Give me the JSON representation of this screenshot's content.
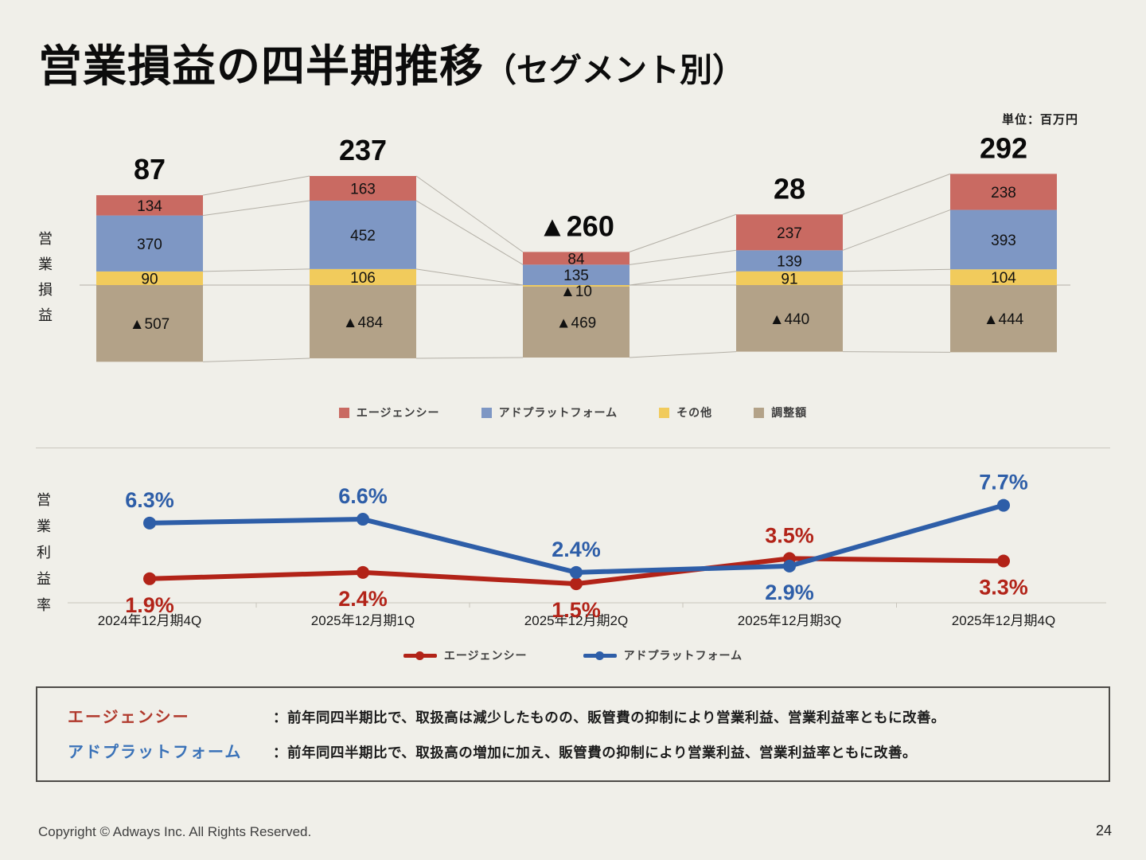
{
  "slide": {
    "title_main": "営業損益の四半期推移",
    "title_paren": "（セグメント別）",
    "unit_label": "単位：百万円",
    "footer": "Copyright © Adways Inc. All Rights Reserved.",
    "page_number": "24"
  },
  "commentary": {
    "rows": [
      {
        "label": "エージェンシー",
        "color": "#B0392C",
        "text": "：前年同四半期比で、取扱高は減少したものの、販管費の抑制により営業利益、営業利益率ともに改善。"
      },
      {
        "label": "アドプラットフォーム",
        "color": "#3A72B8",
        "text": "：前年同四半期比で、取扱高の増加に加え、販管費の抑制により営業利益、営業利益率ともに改善。"
      }
    ]
  },
  "chart_data": [
    {
      "type": "stacked_bar",
      "ylabel": "営業損益",
      "unit": "百万円",
      "negative_prefix": "▲",
      "categories": [
        "2024年12月期4Q",
        "2025年12月期1Q",
        "2025年12月期2Q",
        "2025年12月期3Q",
        "2025年12月期4Q"
      ],
      "series": [
        {
          "name": "エージェンシー",
          "color": "#C96A62",
          "values": [
            134,
            163,
            84,
            237,
            238
          ]
        },
        {
          "name": "アドプラットフォーム",
          "color": "#7E97C4",
          "values": [
            370,
            452,
            135,
            139,
            393
          ]
        },
        {
          "name": "その他",
          "color": "#F1CB5C",
          "values": [
            90,
            106,
            -10,
            91,
            104
          ]
        },
        {
          "name": "調整額",
          "color": "#B3A288",
          "values": [
            -507,
            -484,
            -469,
            -440,
            -444
          ]
        }
      ],
      "totals": [
        87,
        237,
        -260,
        28,
        292
      ],
      "layout": {
        "grid": false,
        "connector_lines": true,
        "legend_position": "bottom",
        "approx_ylim": [
          -600,
          780
        ]
      }
    },
    {
      "type": "line",
      "ylabel": "営業利益率",
      "value_suffix": "%",
      "categories": [
        "2024年12月期4Q",
        "2025年12月期1Q",
        "2025年12月期2Q",
        "2025年12月期3Q",
        "2025年12月期4Q"
      ],
      "series": [
        {
          "name": "エージェンシー",
          "color": "#B22318",
          "values": [
            1.9,
            2.4,
            1.5,
            3.5,
            3.3
          ],
          "label_side": [
            "below",
            "below",
            "below",
            "above",
            "below"
          ]
        },
        {
          "name": "アドプラットフォーム",
          "color": "#2E5EA8",
          "values": [
            6.3,
            6.6,
            2.4,
            2.9,
            7.7
          ],
          "label_side": [
            "above",
            "above",
            "above",
            "below",
            "above"
          ]
        }
      ],
      "layout": {
        "grid": false,
        "legend_position": "bottom",
        "approx_ylim": [
          0,
          11
        ]
      }
    }
  ]
}
